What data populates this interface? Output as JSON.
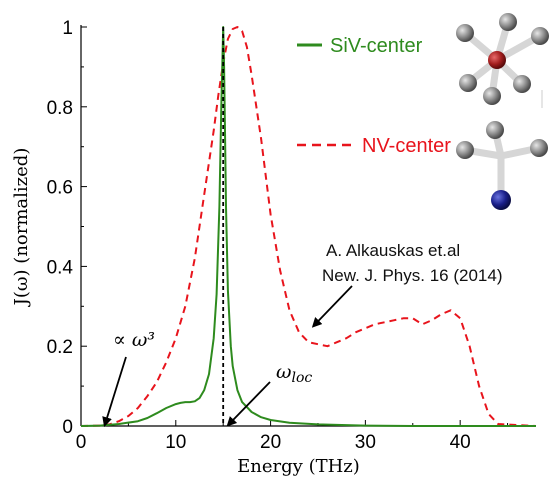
{
  "chart_data": {
    "type": "line",
    "xlabel": "Energy (THz)",
    "ylabel": "J(ω) (normalized)",
    "xlim": [
      0,
      48
    ],
    "ylim": [
      0,
      1
    ],
    "x_ticks": [
      0,
      10,
      20,
      30,
      40
    ],
    "y_ticks": [
      0,
      0.2,
      0.4,
      0.6,
      0.8,
      1
    ],
    "y_tick_labels": [
      "0",
      "0.2",
      "0.4",
      "0.6",
      "0.8",
      "1"
    ],
    "grid": false,
    "legend_position": "top-right",
    "series": [
      {
        "name": "SiV-center",
        "color": "#2e8b1e",
        "style": "solid",
        "x": [
          0,
          2,
          4,
          6,
          7,
          8,
          9,
          10,
          10.5,
          11,
          11.5,
          12,
          12.5,
          13,
          13.5,
          14,
          14.3,
          14.6,
          14.8,
          15,
          15.1,
          15.2,
          15.3,
          15.5,
          15.8,
          16,
          16.5,
          17,
          18,
          19,
          20,
          22,
          25,
          30,
          35,
          48
        ],
        "y": [
          0,
          0.001,
          0.005,
          0.012,
          0.02,
          0.032,
          0.045,
          0.055,
          0.058,
          0.06,
          0.06,
          0.062,
          0.07,
          0.09,
          0.13,
          0.22,
          0.33,
          0.55,
          0.8,
          1.0,
          0.9,
          0.72,
          0.55,
          0.34,
          0.2,
          0.15,
          0.09,
          0.06,
          0.035,
          0.022,
          0.015,
          0.008,
          0.004,
          0.001,
          0,
          0
        ]
      },
      {
        "name": "NV-center",
        "color": "#e8141c",
        "style": "dashed",
        "x": [
          0,
          2,
          3,
          4,
          5,
          6,
          7,
          8,
          9,
          10,
          11,
          12,
          13,
          14,
          14.5,
          15,
          15.5,
          16,
          16.5,
          17,
          17.5,
          18,
          19,
          20,
          21,
          22,
          23,
          24,
          25,
          26,
          27,
          28,
          29,
          30,
          31,
          32,
          33,
          34,
          35,
          36,
          37,
          38,
          39,
          40,
          41,
          42,
          43,
          44,
          48
        ],
        "y": [
          0,
          0.001,
          0.004,
          0.012,
          0.025,
          0.045,
          0.075,
          0.11,
          0.16,
          0.22,
          0.3,
          0.42,
          0.58,
          0.74,
          0.83,
          0.91,
          0.97,
          0.995,
          1.0,
          0.99,
          0.95,
          0.88,
          0.72,
          0.53,
          0.39,
          0.29,
          0.235,
          0.21,
          0.205,
          0.2,
          0.21,
          0.22,
          0.235,
          0.245,
          0.255,
          0.26,
          0.265,
          0.27,
          0.27,
          0.255,
          0.265,
          0.28,
          0.29,
          0.27,
          0.2,
          0.1,
          0.03,
          0.005,
          0
        ]
      }
    ],
    "vertical_marker": {
      "x": 15,
      "color": "#000000",
      "style": "dashed"
    },
    "annotations": [
      {
        "text": "∝ ω³",
        "target_x": 2.5,
        "target_y": 0.002
      },
      {
        "text": "ω_loc",
        "target_x": 15.5,
        "target_y": 0.002
      },
      {
        "text": "A. Alkauskas et.al\nNew. J. Phys. 16 (2014)",
        "target_x": 24.5,
        "target_y": 0.25
      }
    ]
  }
}
